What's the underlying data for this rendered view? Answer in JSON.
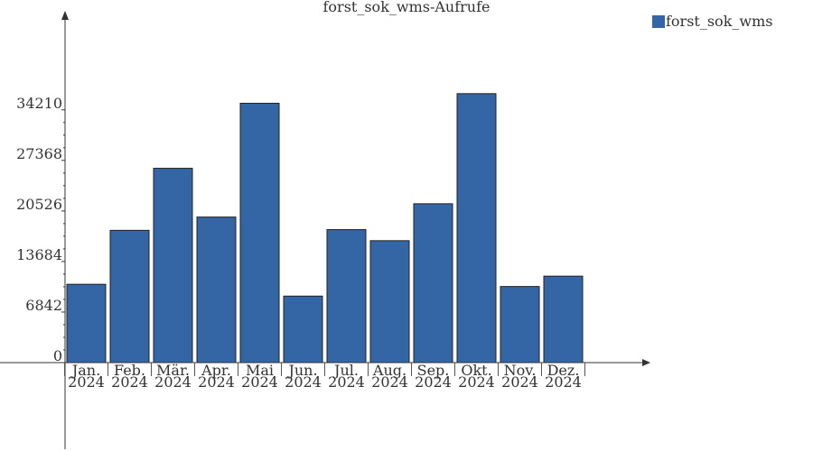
{
  "chart_data": {
    "type": "bar",
    "title": "forst_sok_wms-Aufrufe",
    "categories": [
      [
        "Jan.",
        "2024"
      ],
      [
        "Feb.",
        "2024"
      ],
      [
        "Mär.",
        "2024"
      ],
      [
        "Apr.",
        "2024"
      ],
      [
        "Mai",
        "2024"
      ],
      [
        "Jun.",
        "2024"
      ],
      [
        "Jul.",
        "2024"
      ],
      [
        "Aug.",
        "2024"
      ],
      [
        "Sep.",
        "2024"
      ],
      [
        "Okt.",
        "2024"
      ],
      [
        "Nov.",
        "2024"
      ],
      [
        "Dez.",
        "2024"
      ]
    ],
    "series": [
      {
        "name": "forst_sok_wms",
        "color": "#3465a4",
        "values": [
          10600,
          17900,
          26300,
          19700,
          35100,
          9000,
          18000,
          16500,
          21500,
          36400,
          10300,
          11700
        ]
      }
    ],
    "y_ticks": [
      "0",
      "6842",
      "13684",
      "20526",
      "27368",
      "34210"
    ],
    "ylim": [
      0,
      45000
    ],
    "xlabel": "",
    "ylabel": "",
    "grid": false,
    "legend_position": "top-right"
  }
}
